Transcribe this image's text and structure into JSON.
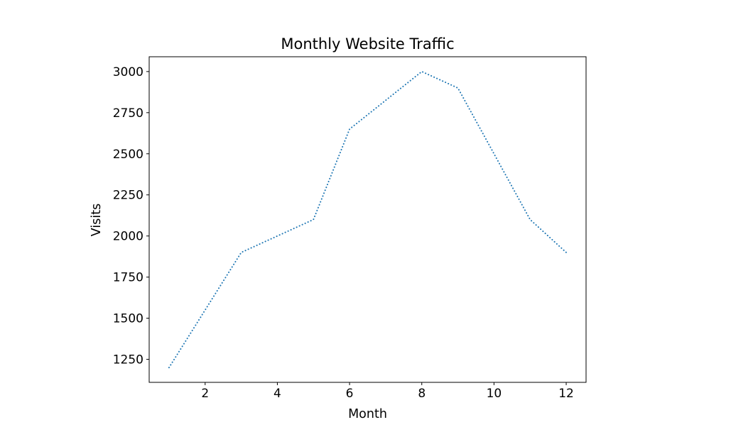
{
  "chart_data": {
    "type": "line",
    "title": "Monthly Website Traffic",
    "xlabel": "Month",
    "ylabel": "Visits",
    "line_style": "dotted",
    "line_color": "#1f77b4",
    "background_color": "#ffffff",
    "spine_color": "#000000",
    "grid": false,
    "legend": null,
    "x": [
      1,
      2,
      3,
      4,
      5,
      6,
      7,
      8,
      9,
      10,
      11,
      12
    ],
    "values": [
      1200,
      1550,
      1900,
      2000,
      2100,
      2650,
      2825,
      3000,
      2900,
      2500,
      2100,
      1900
    ],
    "xticks": [
      2,
      4,
      6,
      8,
      10,
      12
    ],
    "yticks": [
      1250,
      1500,
      1750,
      2000,
      2250,
      2500,
      2750,
      3000
    ],
    "xlim": [
      0.45,
      12.55
    ],
    "ylim": [
      1110,
      3090
    ]
  }
}
